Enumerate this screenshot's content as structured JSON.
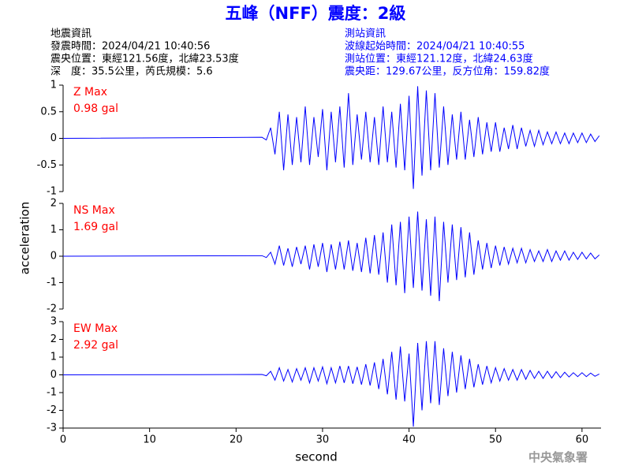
{
  "header": {
    "title": "五峰（NFF）震度：2級",
    "left_lines": [
      "地震資訊",
      "發震時間：2024/04/21 10:40:56",
      "震央位置：東經121.56度，北緯23.53度",
      "深　度：35.5公里，芮氏規模：5.6"
    ],
    "right_lines": [
      "測站資訊",
      "波線起始時間：2024/04/21 10:40:55",
      "測站位置：東經121.12度，北緯24.63度",
      "震央距：129.67公里，反方位角：159.82度"
    ]
  },
  "ylabel": "acceleration",
  "footer": "中央氣象署",
  "chart_data": [
    {
      "type": "line",
      "annotations": [
        "Z Max",
        "0.98 gal"
      ],
      "color": "#0000ff",
      "xlim": [
        0,
        62.2
      ],
      "ylim": [
        -1,
        1
      ],
      "yticks": [
        1,
        0.5,
        0,
        -0.5,
        -1
      ],
      "x": [
        0,
        23,
        23.5,
        24,
        24.5,
        25,
        25.5,
        26,
        26.5,
        27,
        27.5,
        28,
        28.5,
        29,
        29.5,
        30,
        30.5,
        31,
        31.5,
        32,
        32.5,
        33,
        33.5,
        34,
        34.5,
        35,
        35.5,
        36,
        36.5,
        37,
        37.5,
        38,
        38.5,
        39,
        39.5,
        40,
        40.5,
        41,
        41.5,
        42,
        42.5,
        43,
        43.5,
        44,
        44.5,
        45,
        45.5,
        46,
        46.5,
        47,
        47.5,
        48,
        48.5,
        49,
        49.5,
        50,
        50.5,
        51,
        51.5,
        52,
        52.5,
        53,
        53.5,
        54,
        54.5,
        55,
        55.5,
        56,
        56.5,
        57,
        57.5,
        58,
        58.5,
        59,
        59.5,
        60,
        60.5,
        61,
        61.5,
        62
      ],
      "values": [
        0,
        0.02,
        -0.03,
        0.2,
        -0.3,
        0.5,
        -0.6,
        0.45,
        -0.5,
        0.4,
        -0.45,
        0.6,
        -0.5,
        0.4,
        -0.35,
        0.55,
        -0.6,
        0.5,
        -0.45,
        0.6,
        -0.55,
        0.85,
        -0.5,
        0.45,
        -0.4,
        0.5,
        -0.45,
        0.4,
        -0.5,
        0.6,
        -0.45,
        0.5,
        -0.55,
        0.65,
        -0.6,
        0.8,
        -0.95,
        0.98,
        -0.7,
        0.9,
        -0.6,
        0.85,
        -0.55,
        0.6,
        -0.5,
        0.45,
        -0.4,
        0.5,
        -0.4,
        0.35,
        -0.35,
        0.4,
        -0.3,
        0.3,
        -0.25,
        0.3,
        -0.25,
        0.2,
        -0.2,
        0.25,
        -0.2,
        0.2,
        -0.15,
        0.15,
        -0.15,
        0.15,
        -0.12,
        0.12,
        -0.1,
        0.12,
        -0.1,
        0.1,
        -0.1,
        0.1,
        -0.08,
        0.1,
        -0.08,
        0.08,
        -0.06,
        0.05
      ]
    },
    {
      "type": "line",
      "annotations": [
        "NS Max",
        "1.69 gal"
      ],
      "color": "#0000ff",
      "xlim": [
        0,
        62.2
      ],
      "ylim": [
        -2,
        2
      ],
      "yticks": [
        2,
        1,
        0,
        -1,
        -2
      ],
      "x": [
        0,
        23,
        23.5,
        24,
        24.5,
        25,
        25.5,
        26,
        26.5,
        27,
        27.5,
        28,
        28.5,
        29,
        29.5,
        30,
        30.5,
        31,
        31.5,
        32,
        32.5,
        33,
        33.5,
        34,
        34.5,
        35,
        35.5,
        36,
        36.5,
        37,
        37.5,
        38,
        38.5,
        39,
        39.5,
        40,
        40.5,
        41,
        41.5,
        42,
        42.5,
        43,
        43.5,
        44,
        44.5,
        45,
        45.5,
        46,
        46.5,
        47,
        47.5,
        48,
        48.5,
        49,
        49.5,
        50,
        50.5,
        51,
        51.5,
        52,
        52.5,
        53,
        53.5,
        54,
        54.5,
        55,
        55.5,
        56,
        56.5,
        57,
        57.5,
        58,
        58.5,
        59,
        59.5,
        60,
        60.5,
        61,
        61.5,
        62
      ],
      "values": [
        0,
        0.02,
        -0.05,
        0.15,
        -0.3,
        0.4,
        -0.35,
        0.3,
        -0.4,
        0.35,
        -0.3,
        0.4,
        -0.5,
        0.45,
        -0.4,
        0.5,
        -0.6,
        0.45,
        -0.5,
        0.55,
        -0.5,
        0.6,
        -0.55,
        0.5,
        -0.6,
        0.7,
        -0.65,
        0.8,
        -0.7,
        0.9,
        -1.0,
        1.2,
        -1.1,
        1.3,
        -1.4,
        1.5,
        -1.2,
        1.69,
        -1.3,
        1.4,
        -1.5,
        1.5,
        -1.7,
        1.3,
        -1.0,
        1.2,
        -0.9,
        1.1,
        -0.8,
        0.9,
        -0.7,
        0.6,
        -0.5,
        0.5,
        -0.45,
        0.4,
        -0.35,
        0.35,
        -0.3,
        0.3,
        -0.25,
        0.3,
        -0.25,
        0.25,
        -0.2,
        0.2,
        -0.2,
        0.25,
        -0.2,
        0.2,
        -0.15,
        0.2,
        -0.15,
        0.15,
        -0.12,
        0.15,
        -0.1,
        0.12,
        -0.1,
        0.05
      ]
    },
    {
      "type": "line",
      "annotations": [
        "EW Max",
        "2.92 gal"
      ],
      "color": "#0000ff",
      "xlim": [
        0,
        62.2
      ],
      "ylim": [
        -3,
        3
      ],
      "yticks": [
        3,
        2,
        1,
        0,
        -1,
        -2,
        -3
      ],
      "xticks": [
        0,
        10,
        20,
        30,
        40,
        50,
        60
      ],
      "xlabel": "second",
      "x": [
        0,
        23,
        23.5,
        24,
        24.5,
        25,
        25.5,
        26,
        26.5,
        27,
        27.5,
        28,
        28.5,
        29,
        29.5,
        30,
        30.5,
        31,
        31.5,
        32,
        32.5,
        33,
        33.5,
        34,
        34.5,
        35,
        35.5,
        36,
        36.5,
        37,
        37.5,
        38,
        38.5,
        39,
        39.5,
        40,
        40.5,
        41,
        41.5,
        42,
        42.5,
        43,
        43.5,
        44,
        44.5,
        45,
        45.5,
        46,
        46.5,
        47,
        47.5,
        48,
        48.5,
        49,
        49.5,
        50,
        50.5,
        51,
        51.5,
        52,
        52.5,
        53,
        53.5,
        54,
        54.5,
        55,
        55.5,
        56,
        56.5,
        57,
        57.5,
        58,
        58.5,
        59,
        59.5,
        60,
        60.5,
        61,
        61.5,
        62
      ],
      "values": [
        0,
        0.02,
        -0.05,
        0.2,
        -0.3,
        0.4,
        -0.35,
        0.3,
        -0.4,
        0.35,
        -0.3,
        0.4,
        -0.45,
        0.4,
        -0.35,
        0.45,
        -0.5,
        0.4,
        -0.45,
        0.5,
        -0.45,
        0.5,
        -0.5,
        0.45,
        -0.55,
        0.6,
        -0.6,
        0.7,
        -0.8,
        0.9,
        -1.1,
        1.3,
        -1.4,
        1.6,
        -1.5,
        1.2,
        -2.92,
        1.8,
        -2.0,
        1.9,
        -1.6,
        1.9,
        -1.7,
        1.5,
        -1.2,
        1.3,
        -1.0,
        1.1,
        -0.8,
        0.9,
        -0.7,
        0.6,
        -0.55,
        0.5,
        -0.45,
        0.4,
        -0.35,
        0.35,
        -0.3,
        0.3,
        -0.3,
        0.3,
        -0.25,
        0.25,
        -0.2,
        0.2,
        -0.2,
        0.2,
        -0.18,
        0.18,
        -0.15,
        0.15,
        -0.12,
        0.12,
        -0.1,
        0.12,
        -0.1,
        0.1,
        -0.08,
        0.05
      ]
    }
  ]
}
